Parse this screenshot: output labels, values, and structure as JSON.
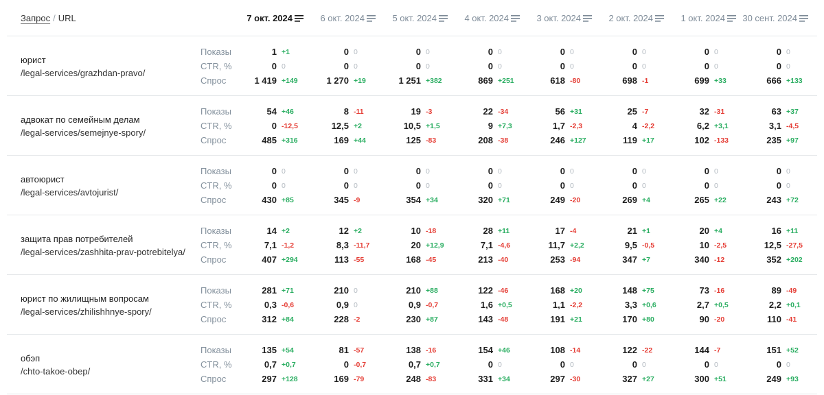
{
  "header": {
    "query_label": "Запрос",
    "separator": "/",
    "url_label": "URL",
    "dates": [
      {
        "label": "7 окт. 2024",
        "active": true
      },
      {
        "label": "6 окт. 2024",
        "active": false
      },
      {
        "label": "5 окт. 2024",
        "active": false
      },
      {
        "label": "4 окт. 2024",
        "active": false
      },
      {
        "label": "3 окт. 2024",
        "active": false
      },
      {
        "label": "2 окт. 2024",
        "active": false
      },
      {
        "label": "1 окт. 2024",
        "active": false
      },
      {
        "label": "30 сент. 2024",
        "active": false
      }
    ]
  },
  "metric_labels": [
    "Показы",
    "CTR, %",
    "Спрос"
  ],
  "colors": {
    "positive_delta": "#2bae62",
    "negative_delta": "#e53e36",
    "zero_delta": "#b3bac1",
    "active_header": "#1a1a1a",
    "inactive_header": "#7e8b98",
    "metric_label": "#84919d"
  },
  "rows": [
    {
      "query": "юрист",
      "url": "/legal-services/grazhdan-pravo/",
      "metrics": [
        [
          [
            "1",
            "+1"
          ],
          [
            "0",
            "0"
          ],
          [
            "0",
            "0"
          ],
          [
            "0",
            "0"
          ],
          [
            "0",
            "0"
          ],
          [
            "0",
            "0"
          ],
          [
            "0",
            "0"
          ],
          [
            "0",
            "0"
          ]
        ],
        [
          [
            "0",
            "0"
          ],
          [
            "0",
            "0"
          ],
          [
            "0",
            "0"
          ],
          [
            "0",
            "0"
          ],
          [
            "0",
            "0"
          ],
          [
            "0",
            "0"
          ],
          [
            "0",
            "0"
          ],
          [
            "0",
            "0"
          ]
        ],
        [
          [
            "1 419",
            "+149"
          ],
          [
            "1 270",
            "+19"
          ],
          [
            "1 251",
            "+382"
          ],
          [
            "869",
            "+251"
          ],
          [
            "618",
            "-80"
          ],
          [
            "698",
            "-1"
          ],
          [
            "699",
            "+33"
          ],
          [
            "666",
            "+133"
          ]
        ]
      ]
    },
    {
      "query": "адвокат по семейным делам",
      "url": "/legal-services/semejnye-spory/",
      "metrics": [
        [
          [
            "54",
            "+46"
          ],
          [
            "8",
            "-11"
          ],
          [
            "19",
            "-3"
          ],
          [
            "22",
            "-34"
          ],
          [
            "56",
            "+31"
          ],
          [
            "25",
            "-7"
          ],
          [
            "32",
            "-31"
          ],
          [
            "63",
            "+37"
          ]
        ],
        [
          [
            "0",
            "-12,5"
          ],
          [
            "12,5",
            "+2"
          ],
          [
            "10,5",
            "+1,5"
          ],
          [
            "9",
            "+7,3"
          ],
          [
            "1,7",
            "-2,3"
          ],
          [
            "4",
            "-2,2"
          ],
          [
            "6,2",
            "+3,1"
          ],
          [
            "3,1",
            "-4,5"
          ]
        ],
        [
          [
            "485",
            "+316"
          ],
          [
            "169",
            "+44"
          ],
          [
            "125",
            "-83"
          ],
          [
            "208",
            "-38"
          ],
          [
            "246",
            "+127"
          ],
          [
            "119",
            "+17"
          ],
          [
            "102",
            "-133"
          ],
          [
            "235",
            "+97"
          ]
        ]
      ]
    },
    {
      "query": "автоюрист",
      "url": "/legal-services/avtojurist/",
      "metrics": [
        [
          [
            "0",
            "0"
          ],
          [
            "0",
            "0"
          ],
          [
            "0",
            "0"
          ],
          [
            "0",
            "0"
          ],
          [
            "0",
            "0"
          ],
          [
            "0",
            "0"
          ],
          [
            "0",
            "0"
          ],
          [
            "0",
            "0"
          ]
        ],
        [
          [
            "0",
            "0"
          ],
          [
            "0",
            "0"
          ],
          [
            "0",
            "0"
          ],
          [
            "0",
            "0"
          ],
          [
            "0",
            "0"
          ],
          [
            "0",
            "0"
          ],
          [
            "0",
            "0"
          ],
          [
            "0",
            "0"
          ]
        ],
        [
          [
            "430",
            "+85"
          ],
          [
            "345",
            "-9"
          ],
          [
            "354",
            "+34"
          ],
          [
            "320",
            "+71"
          ],
          [
            "249",
            "-20"
          ],
          [
            "269",
            "+4"
          ],
          [
            "265",
            "+22"
          ],
          [
            "243",
            "+72"
          ]
        ]
      ]
    },
    {
      "query": "защита прав потребителей",
      "url": "/legal-services/zashhita-prav-potrebitelya/",
      "metrics": [
        [
          [
            "14",
            "+2"
          ],
          [
            "12",
            "+2"
          ],
          [
            "10",
            "-18"
          ],
          [
            "28",
            "+11"
          ],
          [
            "17",
            "-4"
          ],
          [
            "21",
            "+1"
          ],
          [
            "20",
            "+4"
          ],
          [
            "16",
            "+11"
          ]
        ],
        [
          [
            "7,1",
            "-1,2"
          ],
          [
            "8,3",
            "-11,7"
          ],
          [
            "20",
            "+12,9"
          ],
          [
            "7,1",
            "-4,6"
          ],
          [
            "11,7",
            "+2,2"
          ],
          [
            "9,5",
            "-0,5"
          ],
          [
            "10",
            "-2,5"
          ],
          [
            "12,5",
            "-27,5"
          ]
        ],
        [
          [
            "407",
            "+294"
          ],
          [
            "113",
            "-55"
          ],
          [
            "168",
            "-45"
          ],
          [
            "213",
            "-40"
          ],
          [
            "253",
            "-94"
          ],
          [
            "347",
            "+7"
          ],
          [
            "340",
            "-12"
          ],
          [
            "352",
            "+202"
          ]
        ]
      ]
    },
    {
      "query": "юрист по жилищным вопросам",
      "url": "/legal-services/zhilishhnye-spory/",
      "metrics": [
        [
          [
            "281",
            "+71"
          ],
          [
            "210",
            "0"
          ],
          [
            "210",
            "+88"
          ],
          [
            "122",
            "-46"
          ],
          [
            "168",
            "+20"
          ],
          [
            "148",
            "+75"
          ],
          [
            "73",
            "-16"
          ],
          [
            "89",
            "-49"
          ]
        ],
        [
          [
            "0,3",
            "-0,6"
          ],
          [
            "0,9",
            "0"
          ],
          [
            "0,9",
            "-0,7"
          ],
          [
            "1,6",
            "+0,5"
          ],
          [
            "1,1",
            "-2,2"
          ],
          [
            "3,3",
            "+0,6"
          ],
          [
            "2,7",
            "+0,5"
          ],
          [
            "2,2",
            "+0,1"
          ]
        ],
        [
          [
            "312",
            "+84"
          ],
          [
            "228",
            "-2"
          ],
          [
            "230",
            "+87"
          ],
          [
            "143",
            "-48"
          ],
          [
            "191",
            "+21"
          ],
          [
            "170",
            "+80"
          ],
          [
            "90",
            "-20"
          ],
          [
            "110",
            "-41"
          ]
        ]
      ]
    },
    {
      "query": "обэп",
      "url": "/chto-takoe-obep/",
      "metrics": [
        [
          [
            "135",
            "+54"
          ],
          [
            "81",
            "-57"
          ],
          [
            "138",
            "-16"
          ],
          [
            "154",
            "+46"
          ],
          [
            "108",
            "-14"
          ],
          [
            "122",
            "-22"
          ],
          [
            "144",
            "-7"
          ],
          [
            "151",
            "+52"
          ]
        ],
        [
          [
            "0,7",
            "+0,7"
          ],
          [
            "0",
            "-0,7"
          ],
          [
            "0,7",
            "+0,7"
          ],
          [
            "0",
            "0"
          ],
          [
            "0",
            "0"
          ],
          [
            "0",
            "0"
          ],
          [
            "0",
            "0"
          ],
          [
            "0",
            "0"
          ]
        ],
        [
          [
            "297",
            "+128"
          ],
          [
            "169",
            "-79"
          ],
          [
            "248",
            "-83"
          ],
          [
            "331",
            "+34"
          ],
          [
            "297",
            "-30"
          ],
          [
            "327",
            "+27"
          ],
          [
            "300",
            "+51"
          ],
          [
            "249",
            "+93"
          ]
        ]
      ]
    }
  ]
}
